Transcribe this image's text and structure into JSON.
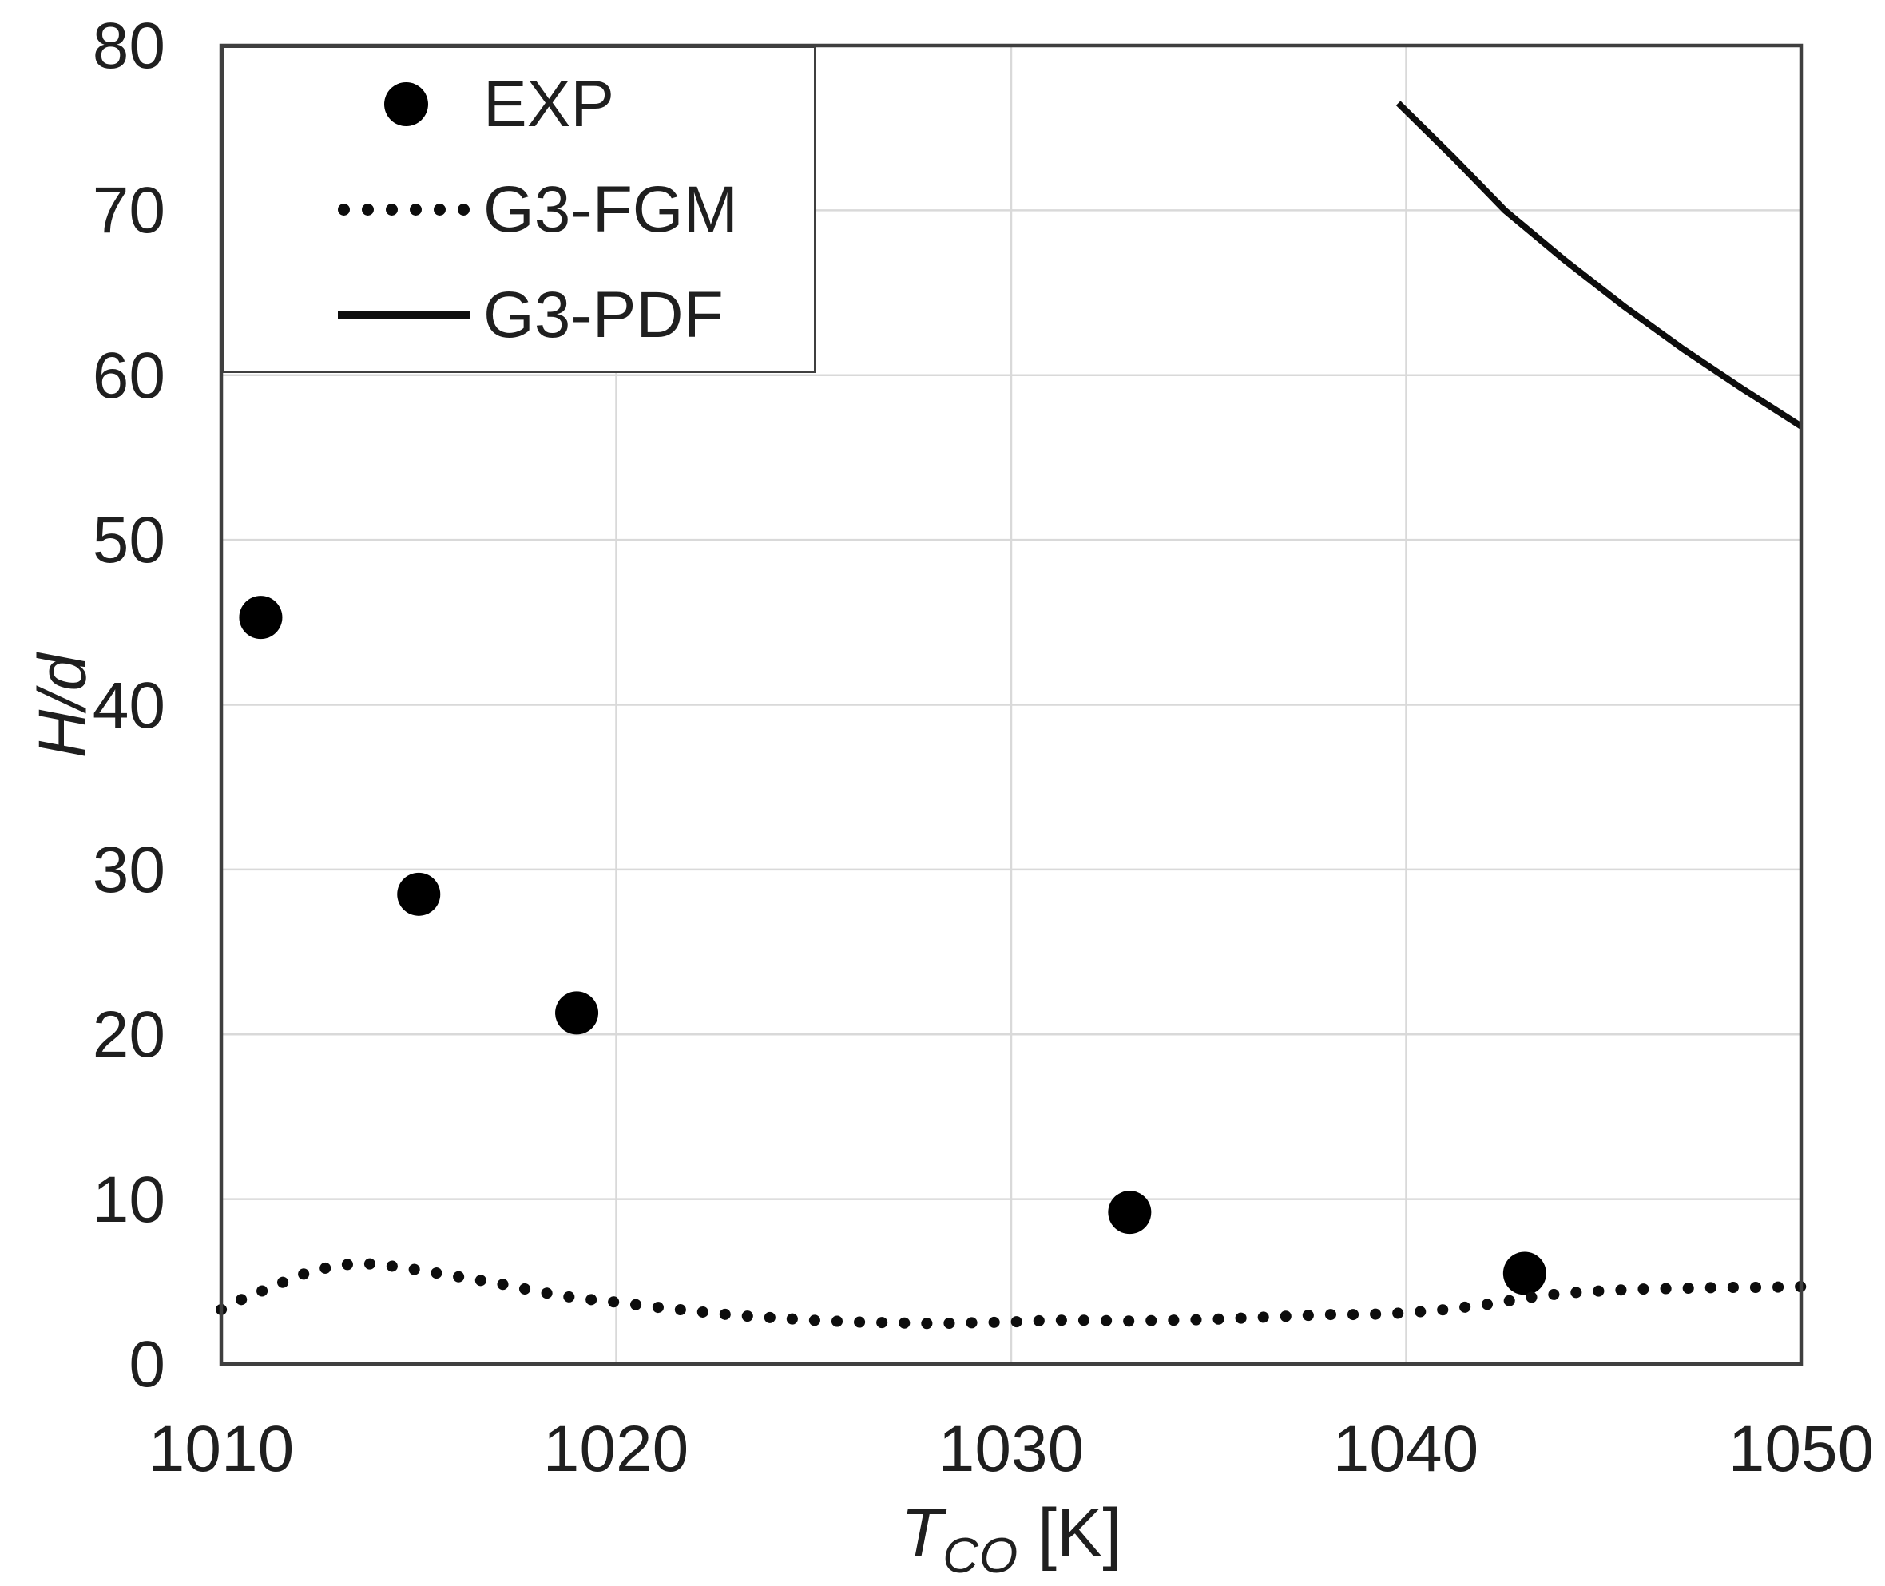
{
  "chart_data": {
    "type": "combo",
    "title": "",
    "ylabel": "H/d",
    "xlabel_parts": {
      "symbol": "T",
      "subscript": "CO",
      "unit": "[K]"
    },
    "xlim": [
      1010,
      1050
    ],
    "ylim": [
      0,
      80
    ],
    "xticks": [
      "1010",
      "1020",
      "1030",
      "1040",
      "1050"
    ],
    "yticks": [
      "0",
      "10",
      "20",
      "30",
      "40",
      "50",
      "60",
      "70",
      "80"
    ],
    "grid": {
      "on": true,
      "color": "#d9d9d9",
      "x_values": [
        1020,
        1030,
        1040
      ],
      "y_values": [
        10,
        20,
        30,
        40,
        50,
        60,
        70
      ]
    },
    "axis_color": "#3f3f3f",
    "text_color": "#1f1f1f",
    "legend": {
      "position": "top-left",
      "items": [
        {
          "label": "EXP",
          "swatch": "filled-circle"
        },
        {
          "label": "G3-FGM",
          "swatch": "dotted-line"
        },
        {
          "label": "G3-PDF",
          "swatch": "solid-line"
        }
      ]
    },
    "series": [
      {
        "name": "EXP",
        "type": "scatter",
        "marker": "filled-circle",
        "color": "#000000",
        "points": [
          [
            1011,
            45.3
          ],
          [
            1015,
            28.5
          ],
          [
            1019,
            21.3
          ],
          [
            1033,
            9.2
          ],
          [
            1043,
            5.5
          ]
        ]
      },
      {
        "name": "G3-FGM",
        "type": "line",
        "style": "dotted",
        "color": "#0d0d0d",
        "points": [
          [
            1010,
            3.3
          ],
          [
            1010.5,
            3.9
          ],
          [
            1011,
            4.4
          ],
          [
            1011.5,
            4.9
          ],
          [
            1012,
            5.4
          ],
          [
            1012.5,
            5.75
          ],
          [
            1013,
            6.0
          ],
          [
            1013.5,
            6.1
          ],
          [
            1014,
            6.05
          ],
          [
            1015,
            5.7
          ],
          [
            1016,
            5.3
          ],
          [
            1017,
            4.9
          ],
          [
            1018,
            4.4
          ],
          [
            1019,
            4.0
          ],
          [
            1020,
            3.75
          ],
          [
            1021,
            3.45
          ],
          [
            1022,
            3.2
          ],
          [
            1023,
            2.95
          ],
          [
            1024,
            2.8
          ],
          [
            1025,
            2.65
          ],
          [
            1026,
            2.55
          ],
          [
            1027,
            2.5
          ],
          [
            1028,
            2.45
          ],
          [
            1029,
            2.5
          ],
          [
            1030,
            2.55
          ],
          [
            1031,
            2.65
          ],
          [
            1032,
            2.65
          ],
          [
            1033,
            2.6
          ],
          [
            1034,
            2.65
          ],
          [
            1035,
            2.7
          ],
          [
            1036,
            2.8
          ],
          [
            1037,
            2.9
          ],
          [
            1038,
            3.0
          ],
          [
            1039,
            3.0
          ],
          [
            1040,
            3.1
          ],
          [
            1041,
            3.3
          ],
          [
            1042,
            3.6
          ],
          [
            1043,
            4.0
          ],
          [
            1044,
            4.3
          ],
          [
            1045,
            4.45
          ],
          [
            1046,
            4.55
          ],
          [
            1047,
            4.6
          ],
          [
            1048,
            4.65
          ],
          [
            1049,
            4.65
          ],
          [
            1050,
            4.7
          ]
        ]
      },
      {
        "name": "G3-PDF",
        "type": "line",
        "style": "solid",
        "color": "#0d0d0d",
        "points": [
          [
            1039.8,
            76.5
          ],
          [
            1041.2,
            73.2
          ],
          [
            1042.5,
            70.0
          ],
          [
            1044,
            67.0
          ],
          [
            1045.5,
            64.2
          ],
          [
            1047,
            61.6
          ],
          [
            1048.5,
            59.2
          ],
          [
            1050,
            56.9
          ]
        ]
      }
    ]
  }
}
